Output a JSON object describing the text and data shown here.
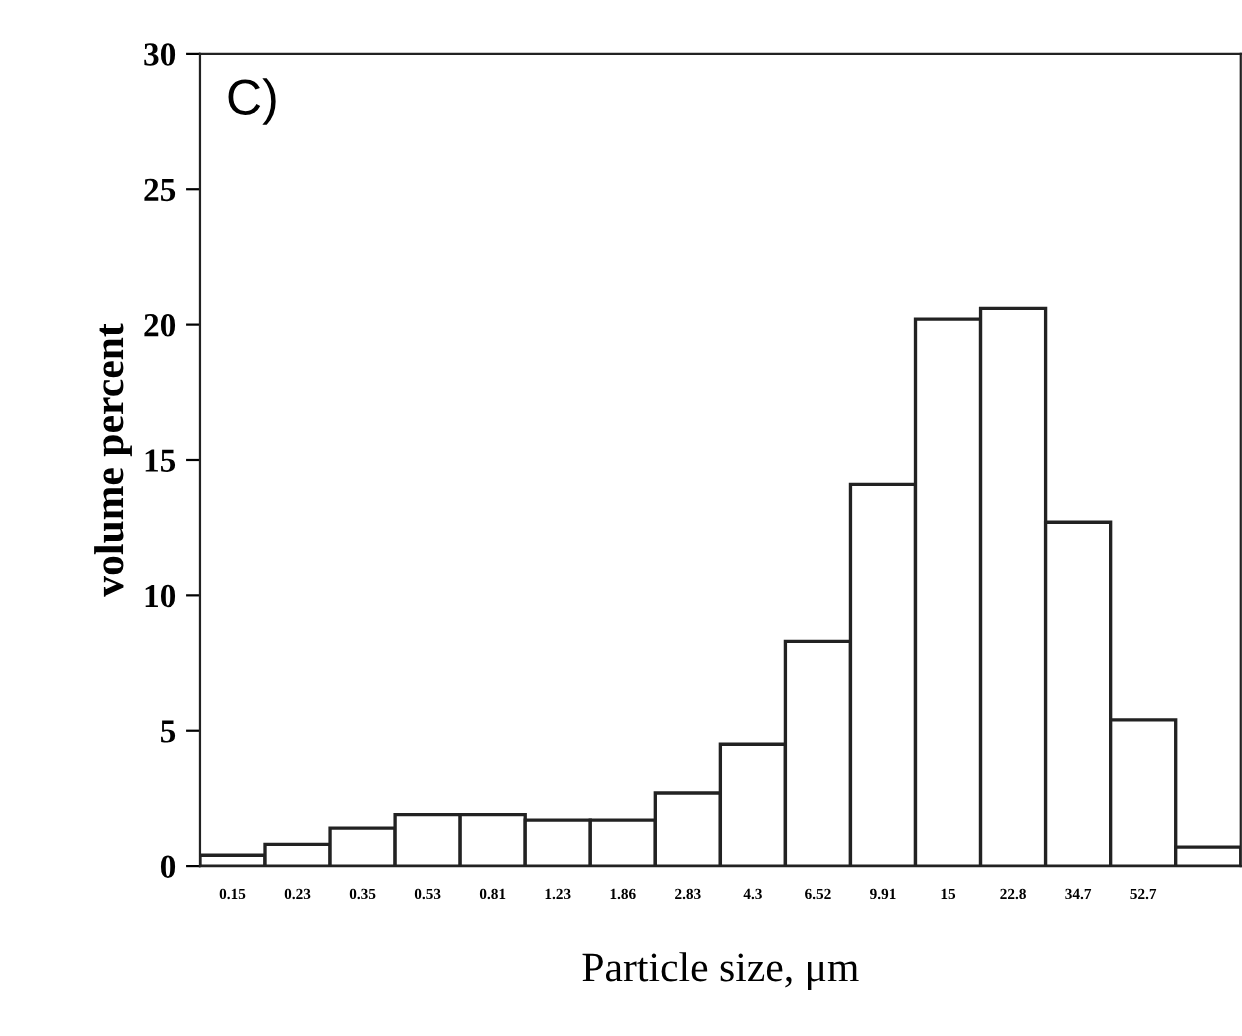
{
  "chart_data": {
    "type": "bar",
    "categories": [
      "0.15",
      "0.23",
      "0.35",
      "0.53",
      "0.81",
      "1.23",
      "1.86",
      "2.83",
      "4.3",
      "6.52",
      "9.91",
      "15",
      "22.8",
      "34.7",
      "52.7",
      null
    ],
    "values": [
      0.4,
      0.8,
      1.4,
      1.9,
      1.9,
      1.7,
      1.7,
      2.7,
      4.5,
      8.3,
      14.1,
      20.2,
      20.6,
      12.7,
      5.4,
      0.7
    ],
    "color": "#ffffff",
    "xlabel": "Particle size, μm",
    "ylabel": "volume percent",
    "ylim": [
      0,
      30
    ],
    "yticks": [
      0,
      5,
      10,
      15,
      20,
      25,
      30
    ],
    "annotations": [
      "C)"
    ],
    "grid": false,
    "legend": false
  }
}
